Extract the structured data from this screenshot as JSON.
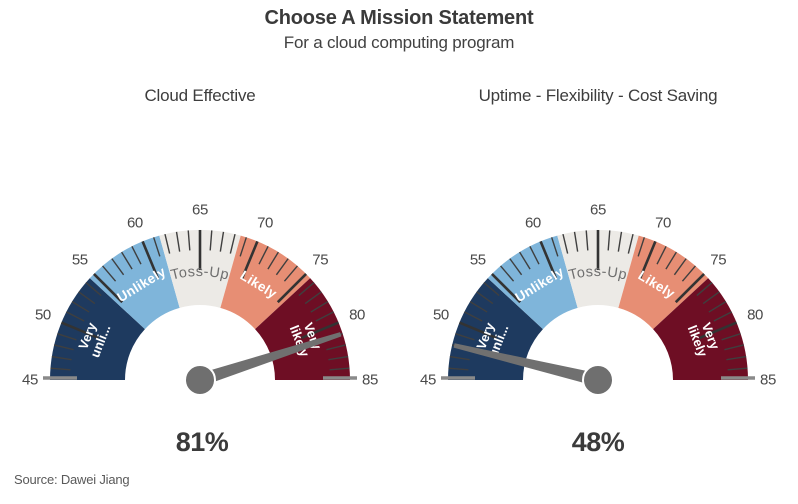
{
  "header": {
    "title": "Choose A Mission Statement",
    "subtitle": "For a cloud computing program"
  },
  "source_text": "Source: Dawei Jiang",
  "style": {
    "tick_color": "#333333",
    "minor_tick_color": "#3f3f3f",
    "edge_tick_color": "#8a8a8a",
    "number_color": "#4a4a4a",
    "value_color": "#3b3b3b",
    "needle_color": "#707070",
    "hub_color": "#6f6f6f"
  },
  "chart_data": [
    {
      "type": "gauge",
      "title": "Cloud Effective",
      "value": 81,
      "value_label": "81%",
      "axis": {
        "min": 45,
        "max": 85,
        "major_tick_step": 5,
        "minor_tick_step": 1,
        "tick_labels": [
          45,
          50,
          55,
          60,
          65,
          70,
          75,
          80,
          85
        ],
        "span_degrees": 180
      },
      "segments": [
        {
          "label": "Very unli...",
          "lines": [
            "Very",
            "unli..."
          ],
          "from": 45,
          "to": 54.5,
          "color": "#1e3a5f",
          "text_color": "#ffffff"
        },
        {
          "label": "Unlikely",
          "from": 54.5,
          "to": 61.5,
          "color": "#7fb5da",
          "text_color": "#ffffff"
        },
        {
          "label": "Toss-Up",
          "from": 61.5,
          "to": 68.5,
          "color": "#eceae6",
          "text_color": "#6f6f6f",
          "arched": true
        },
        {
          "label": "Likely",
          "from": 68.5,
          "to": 75.5,
          "color": "#e78e74",
          "text_color": "#ffffff"
        },
        {
          "label": "Very likely",
          "lines": [
            "Very",
            "likely"
          ],
          "from": 75.5,
          "to": 85,
          "color": "#6e0e24",
          "text_color": "#ffffff"
        }
      ]
    },
    {
      "type": "gauge",
      "title": "Uptime - Flexibility - Cost Saving",
      "value": 48,
      "value_label": "48%",
      "axis": {
        "min": 45,
        "max": 85,
        "major_tick_step": 5,
        "minor_tick_step": 1,
        "tick_labels": [
          45,
          50,
          55,
          60,
          65,
          70,
          75,
          80,
          85
        ],
        "span_degrees": 180
      },
      "segments": [
        {
          "label": "Very unli...",
          "lines": [
            "Very",
            "unli..."
          ],
          "from": 45,
          "to": 54.5,
          "color": "#1e3a5f",
          "text_color": "#ffffff"
        },
        {
          "label": "Unlikely",
          "from": 54.5,
          "to": 61.5,
          "color": "#7fb5da",
          "text_color": "#ffffff"
        },
        {
          "label": "Toss-Up",
          "from": 61.5,
          "to": 68.5,
          "color": "#eceae6",
          "text_color": "#6f6f6f",
          "arched": true
        },
        {
          "label": "Likely",
          "from": 68.5,
          "to": 75.5,
          "color": "#e78e74",
          "text_color": "#ffffff"
        },
        {
          "label": "Very likely",
          "lines": [
            "Very",
            "likely"
          ],
          "from": 75.5,
          "to": 85,
          "color": "#6e0e24",
          "text_color": "#ffffff"
        }
      ]
    }
  ]
}
